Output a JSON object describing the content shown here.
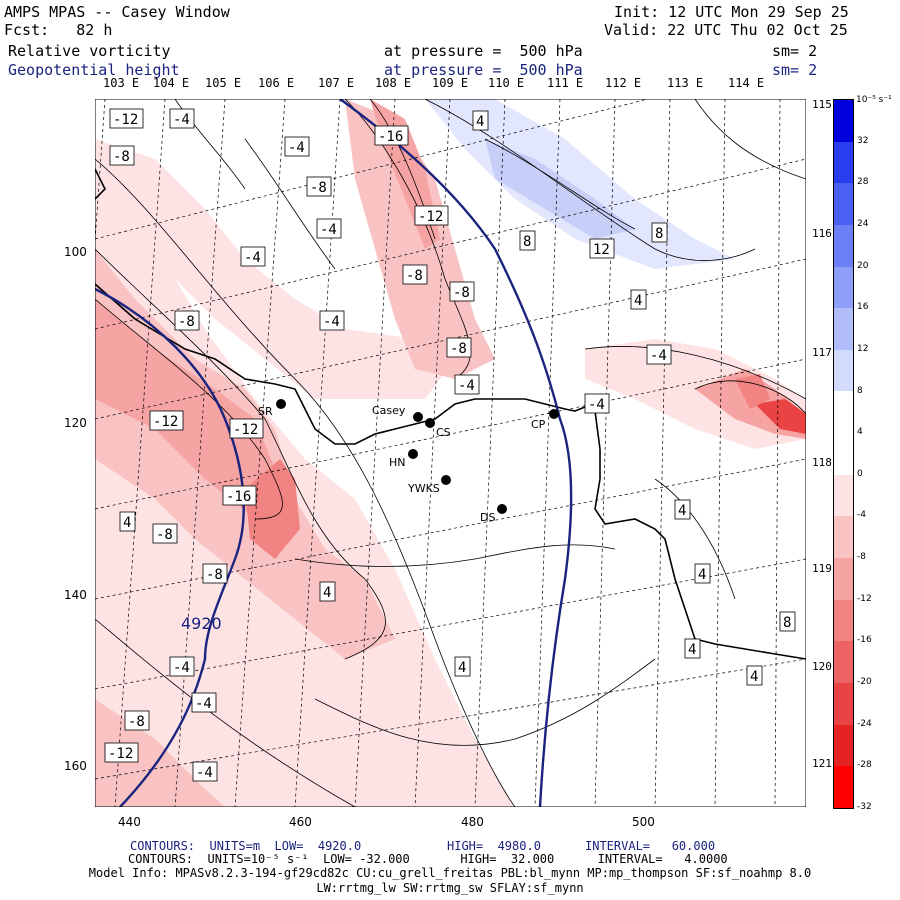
{
  "header": {
    "title": "AMPS MPAS -- Casey Window",
    "init": "Init: 12 UTC Mon 29 Sep 25",
    "fcst": "Fcst:   82 h",
    "valid": "Valid: 22 UTC Thu 02 Oct 25",
    "field1": "Relative vorticity",
    "field1_level": "at pressure =  500 hPa",
    "field1_sm": "sm= 2",
    "field2": "Geopotential height",
    "field2_level": "at pressure =  500 hPa",
    "field2_sm": "sm= 2"
  },
  "lon_labels": [
    "103 E",
    "104 E",
    "105 E",
    "106 E",
    "107 E",
    "108 E",
    "109 E",
    "110 E",
    "111 E",
    "112 E",
    "113 E",
    "114 E"
  ],
  "lon_right_labels": [
    "115 E",
    "116 E",
    "117 E",
    "118 E",
    "119 E",
    "120 E",
    "121 E"
  ],
  "y_axis": [
    "100",
    "120",
    "140",
    "160"
  ],
  "x_axis": [
    "440",
    "460",
    "480",
    "500"
  ],
  "colorbar": {
    "units": "10⁻⁵ s⁻¹",
    "ticks": [
      "32",
      "28",
      "24",
      "20",
      "16",
      "12",
      "8",
      "4",
      "0",
      "-4",
      "-8",
      "-12",
      "-16",
      "-20",
      "-24",
      "-28",
      "-32"
    ],
    "colors": [
      "#0000dd",
      "#2a3cf0",
      "#4c5ff4",
      "#6d7ff6",
      "#8f9ef8",
      "#b1bdfa",
      "#d3dbfc",
      "#ffffff",
      "#ffffff",
      "#fde3e3",
      "#f9c3c3",
      "#f5a3a3",
      "#f18383",
      "#ed6363",
      "#e94343",
      "#e52323",
      "#ff0000"
    ]
  },
  "stations": [
    {
      "name": "SR",
      "id": "SR"
    },
    {
      "name": "Casey",
      "id": "Casey"
    },
    {
      "name": "CS",
      "id": "CS"
    },
    {
      "name": "CP",
      "id": "CP"
    },
    {
      "name": "HN",
      "id": "HN"
    },
    {
      "name": "YWKS",
      "id": "YWKS"
    },
    {
      "name": "DS",
      "id": "DS"
    }
  ],
  "contour_labels": [
    "-12",
    "-4",
    "-8",
    "-16",
    "-4",
    "4",
    "-8",
    "-4",
    "-12",
    "8",
    "12",
    "8",
    "-4",
    "-8",
    "-8",
    "-4",
    "4",
    "-8",
    "-4",
    "-8",
    "-4",
    "-12",
    "-12",
    "-4",
    "-16",
    "4",
    "-8",
    "-8",
    "4",
    "4",
    "4",
    "4",
    "8",
    "-4",
    "-4",
    "4",
    "4",
    "-8",
    "-12",
    "-4",
    "4920"
  ],
  "height_contour_label": "4920",
  "footer": {
    "line1_left": "CONTOURS:  UNITS=m  LOW=  4920.0",
    "line1_mid": "HIGH=  4980.0",
    "line1_right": "INTERVAL=   60.000",
    "line2": "CONTOURS:  UNITS=10⁻⁵ s⁻¹  LOW= -32.000       HIGH=  32.000      INTERVAL=   4.0000",
    "model_info": "Model Info: MPASv8.2.3-194-gf29cd82c CU:cu_grell_freitas PBL:bl_mynn MP:mp_thompson SF:sf_noahmp 8.0",
    "model_info2": "LW:rrtmg_lw SW:rrtmg_sw SFLAY:sf_mynn"
  }
}
